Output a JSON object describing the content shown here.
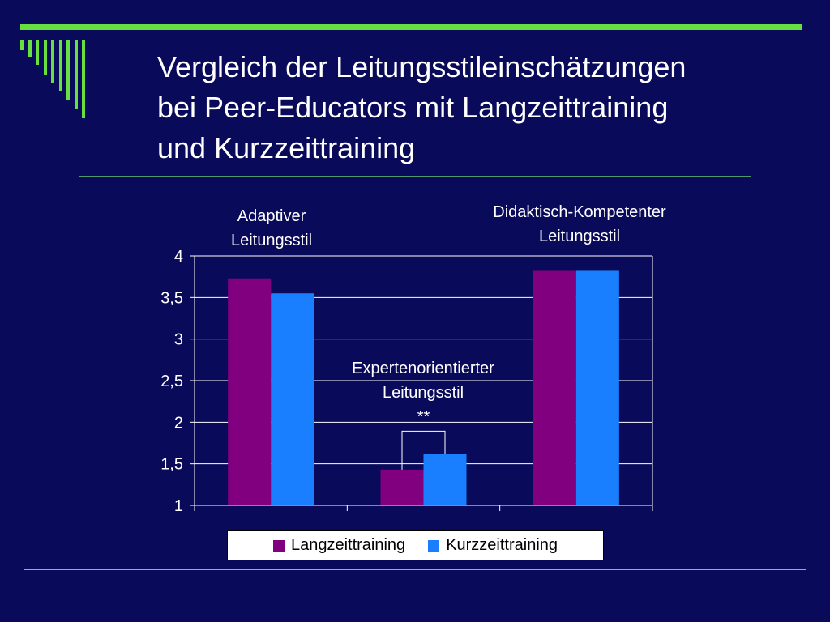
{
  "title_lines": [
    "Vergleich der Leitungsstileinschätzungen",
    "bei Peer-Educators mit Langzeittraining",
    "und Kurzzeittraining"
  ],
  "colors": {
    "background": "#0a0a5a",
    "accent": "#66e040",
    "series": [
      "#800080",
      "#1a7fff"
    ]
  },
  "chart_data": {
    "type": "bar",
    "categories": [
      "Adaptiver Leitungsstil",
      "Expertenorientierter Leitungsstil",
      "Didaktisch-Kompetenter Leitungsstil"
    ],
    "series": [
      {
        "name": "Langzeittraining",
        "values": [
          3.73,
          1.43,
          3.83
        ],
        "color": "#800080"
      },
      {
        "name": "Kurzzeittraining",
        "values": [
          3.55,
          1.62,
          3.83
        ],
        "color": "#1a7fff"
      }
    ],
    "ylim": [
      1,
      4
    ],
    "yticks": [
      "1",
      "1,5",
      "2",
      "2,5",
      "3",
      "3,5",
      "4"
    ],
    "grid": true,
    "legend_position": "bottom",
    "annotations": {
      "cat1_lines": [
        "Adaptiver",
        "Leitungsstil"
      ],
      "cat2_lines": [
        "Expertenorientierter",
        "Leitungsstil"
      ],
      "cat3_lines": [
        "Didaktisch-Kompetenter",
        "Leitungsstil"
      ],
      "significance": "**"
    }
  }
}
